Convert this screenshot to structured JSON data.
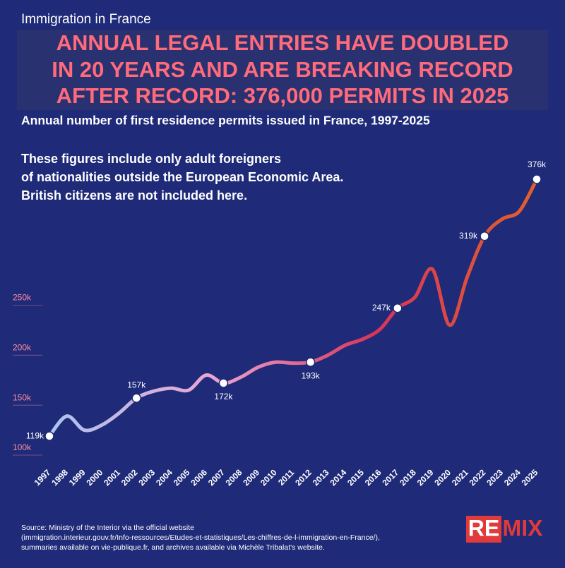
{
  "chart_data": {
    "type": "line",
    "kicker": "Immigration in France",
    "title_lines": [
      "ANNUAL LEGAL ENTRIES HAVE DOUBLED",
      "IN 20 YEARS AND ARE BREAKING RECORD",
      "AFTER RECORD: 376,000 PERMITS IN 2025"
    ],
    "subtitle": "Annual number of first residence permits issued in France, 1997-2025",
    "note_lines": [
      "These figures include only adult foreigners",
      "of nationalities outside the European Economic Area.",
      "British citizens are not included here."
    ],
    "categories": [
      "1997",
      "1998",
      "1999",
      "2000",
      "2001",
      "2002",
      "2003",
      "2004",
      "2005",
      "2006",
      "2007",
      "2008",
      "2009",
      "2010",
      "2011",
      "2012",
      "2013",
      "2014",
      "2015",
      "2016",
      "2017",
      "2018",
      "2019",
      "2020",
      "2021",
      "2022",
      "2023",
      "2024",
      "2025"
    ],
    "values": [
      119000,
      139000,
      125000,
      130000,
      142000,
      157000,
      164000,
      167000,
      165000,
      180000,
      172000,
      178000,
      188000,
      193000,
      192000,
      193000,
      200000,
      210000,
      216000,
      226000,
      247000,
      258000,
      286000,
      230000,
      278000,
      319000,
      336000,
      344000,
      376000
    ],
    "value_labels": [
      "119k",
      null,
      null,
      null,
      null,
      "157k",
      null,
      null,
      null,
      null,
      "172k",
      null,
      null,
      null,
      null,
      "193k",
      null,
      null,
      null,
      null,
      "247k",
      null,
      null,
      null,
      null,
      "319k",
      null,
      null,
      "376k"
    ],
    "colors": [
      "#a9c4f0",
      "#e9a6d4",
      "#d9345a",
      "#e0622a"
    ],
    "ylim": [
      100000,
      400000
    ],
    "yticks": [
      {
        "value": 100000,
        "label": "100k"
      },
      {
        "value": 150000,
        "label": "150k"
      },
      {
        "value": 200000,
        "label": "200k"
      },
      {
        "value": 250000,
        "label": "250k"
      }
    ],
    "source_lines": [
      "Source: Ministry of the Interior via the official website",
      "(immigration.interieur.gouv.fr/Info-ressources/Etudes-et-statistiques/Les-chiffres-de-l-immigration-en-France/),",
      "summaries available on vie-publique.fr, and archives available via Michèle Tribalat's website."
    ]
  },
  "logo": {
    "left": "RE",
    "right": "MIX"
  }
}
